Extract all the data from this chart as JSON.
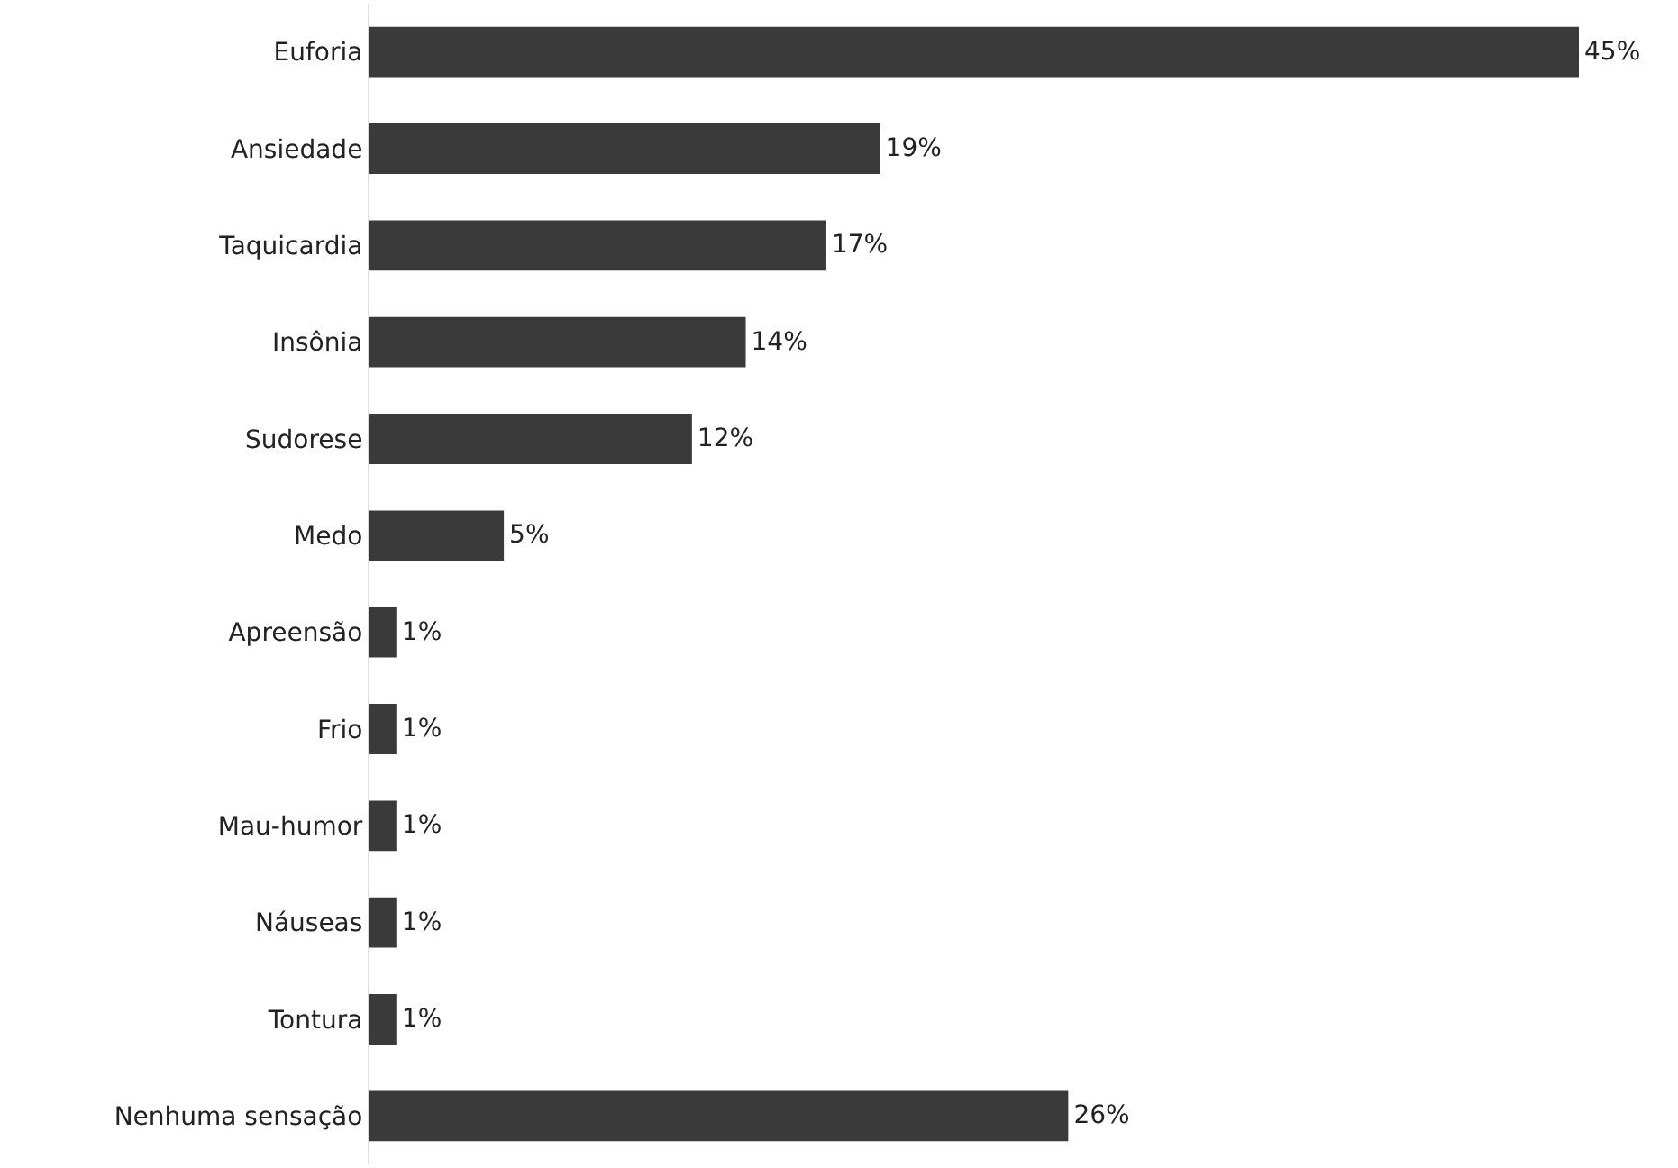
{
  "chart_data": {
    "type": "bar",
    "orientation": "horizontal",
    "categories": [
      "Euforia",
      "Ansiedade",
      "Taquicardia",
      "Insônia",
      "Sudorese",
      "Medo",
      "Apreensão",
      "Frio",
      "Mau-humor",
      "Náuseas",
      "Tontura",
      "Nenhuma sensação"
    ],
    "values": [
      45,
      19,
      17,
      14,
      12,
      5,
      1,
      1,
      1,
      1,
      1,
      26
    ],
    "value_labels": [
      "45%",
      "19%",
      "17%",
      "14%",
      "12%",
      "5%",
      "1%",
      "1%",
      "1%",
      "1%",
      "1%",
      "26%"
    ],
    "color": "#3a3a3a"
  }
}
